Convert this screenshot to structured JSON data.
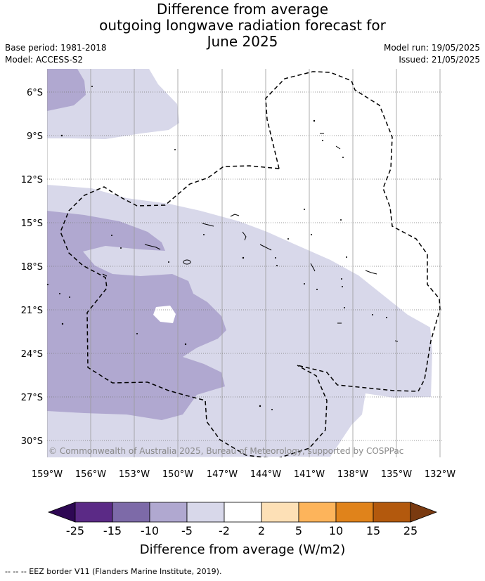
{
  "title_lines": [
    "Difference from average",
    "outgoing longwave radiation forecast for",
    "June 2025"
  ],
  "base_period": "Base period: 1981-2018",
  "model": "Model: ACCESS-S2",
  "model_run": "Model run: 19/05/2025",
  "issued": "Issued: 21/05/2025",
  "copyright": "© Commonwealth of Australia 2025, Bureau of Meteorology, supported by COSPPac",
  "footer": "--  --  -- EEZ border V11 (Flanders Marine Institute, 2019).",
  "colorbar": {
    "label": "Difference from average (W/m2)",
    "ticks": [
      "-25",
      "-15",
      "-10",
      "-5",
      "-2",
      "2",
      "5",
      "10",
      "15",
      "25"
    ],
    "colors": [
      "#2e0854",
      "#5b2a86",
      "#7d6aa8",
      "#b0a8d0",
      "#d8d8ea",
      "#ffffff",
      "#fde0b6",
      "#fdb45b",
      "#e0831b",
      "#b3590d",
      "#7a3a10"
    ]
  },
  "map": {
    "lon_ticks": [
      "159°W",
      "156°W",
      "153°W",
      "150°W",
      "147°W",
      "144°W",
      "141°W",
      "138°W",
      "135°W",
      "132°W"
    ],
    "lat_ticks": [
      "6°S",
      "9°S",
      "12°S",
      "15°S",
      "18°S",
      "21°S",
      "24°S",
      "27°S",
      "30°S"
    ]
  }
}
